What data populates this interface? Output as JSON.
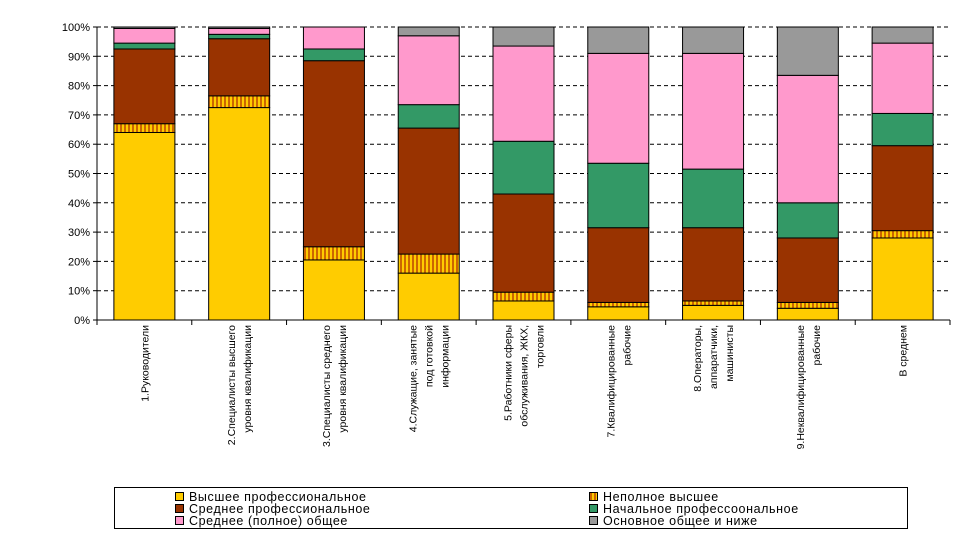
{
  "chart_data": {
    "type": "stacked-bar-100",
    "ylim": [
      0,
      100
    ],
    "yticks": [
      "0%",
      "10%",
      "20%",
      "30%",
      "40%",
      "50%",
      "60%",
      "70%",
      "80%",
      "90%",
      "100%"
    ],
    "categories": [
      [
        "1.Руководители"
      ],
      [
        "2.Специалисты высшего",
        "уровня квалификации"
      ],
      [
        "3.Специалисты среднего",
        "уровня квалификации"
      ],
      [
        "4.Служащие, занятые",
        "под готовкой",
        "информации"
      ],
      [
        "5.Работники сферы",
        "обслуживания, ЖКХ,",
        "торговли"
      ],
      [
        "7.Квалифицированные",
        "рабочие"
      ],
      [
        "8.Операторы,",
        "аппаратчики,",
        "машинисты"
      ],
      [
        "9.Неквалифицированные",
        "рабочие"
      ],
      [
        "В среднем"
      ]
    ],
    "series": [
      {
        "name": "Высшее профессиональное",
        "color": "#FFCC00",
        "pattern": "solid",
        "values": [
          64,
          72.5,
          20.5,
          16,
          6.5,
          4.5,
          5,
          4,
          28
        ]
      },
      {
        "name": "Неполное высшее",
        "color": "#FF9900",
        "pattern": "vstripes",
        "values": [
          3,
          4,
          4.5,
          6.5,
          3,
          1.5,
          1.5,
          2,
          2.5
        ]
      },
      {
        "name": "Среднее профессиональное",
        "color": "#993300",
        "pattern": "solid",
        "values": [
          25.5,
          19.5,
          63.5,
          43,
          33.5,
          25.5,
          25,
          22,
          29
        ]
      },
      {
        "name": "Начальное профессоональное",
        "color": "#339966",
        "pattern": "solid",
        "values": [
          2,
          1.5,
          4,
          8,
          18,
          22,
          20,
          12,
          11
        ]
      },
      {
        "name": "Среднее (полное) общее",
        "color": "#FF99CC",
        "pattern": "solid",
        "values": [
          5,
          2,
          7.5,
          23.5,
          32.5,
          37.5,
          39.5,
          43.5,
          24
        ]
      },
      {
        "name": "Основное общее и ниже",
        "color": "#999999",
        "pattern": "solid",
        "values": [
          0.5,
          0.5,
          0,
          3,
          6.5,
          9,
          9,
          16.5,
          5.5
        ]
      }
    ]
  },
  "legend": {
    "items": [
      {
        "label": "Высшее профессиональное"
      },
      {
        "label": "Неполное высшее"
      },
      {
        "label": "Среднее профессиональное"
      },
      {
        "label": "Начальное профессоональное"
      },
      {
        "label": "Среднее (полное) общее"
      },
      {
        "label": "Основное общее и ниже"
      }
    ]
  }
}
